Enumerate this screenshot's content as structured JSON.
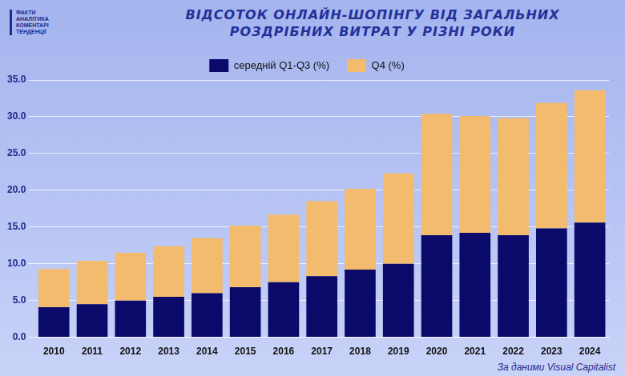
{
  "chart_data": {
    "type": "bar",
    "title": [
      "ВІДСОТОК ОНЛАЙН-ШОПІНГУ ВІД ЗАГАЛЬНИХ",
      "РОЗДРІБНИХ ВИТРАТ У РІЗНІ РОКИ"
    ],
    "logo": [
      "ФАКТИ",
      "АНАЛІТИКА",
      "КОМЕНТАРІ",
      "ТЕНДЕНЦІЇ"
    ],
    "source": "За даними Visual Capitalist",
    "categories": [
      "2010",
      "2011",
      "2012",
      "2013",
      "2014",
      "2015",
      "2016",
      "2017",
      "2018",
      "2019",
      "2020",
      "2021",
      "2022",
      "2023",
      "2024"
    ],
    "series": [
      {
        "name": "середній Q1-Q3 (%)",
        "color": "#0b0a6b",
        "values": [
          4.1,
          4.5,
          5.0,
          5.5,
          6.0,
          6.8,
          7.5,
          8.3,
          9.2,
          10.0,
          13.9,
          14.2,
          13.9,
          14.8,
          15.6
        ]
      },
      {
        "name": "Q4 (%)",
        "color": "#f2bb6e",
        "values": [
          5.2,
          5.9,
          6.5,
          6.9,
          7.5,
          8.4,
          9.2,
          10.2,
          11.0,
          12.3,
          16.5,
          15.9,
          15.9,
          17.1,
          18.0
        ]
      }
    ],
    "stacked": true,
    "ylim": [
      0,
      35
    ],
    "yticks": [
      {
        "value": 0,
        "label": "0.0"
      },
      {
        "value": 5,
        "label": "5.0"
      },
      {
        "value": 10,
        "label": "10.0"
      },
      {
        "value": 15,
        "label": "15.0"
      },
      {
        "value": 20,
        "label": "20.0"
      },
      {
        "value": 25,
        "label": "25.0"
      },
      {
        "value": 30,
        "label": "30.0"
      },
      {
        "value": 35,
        "label": "35.0"
      }
    ],
    "grid": true,
    "legend": "top"
  }
}
